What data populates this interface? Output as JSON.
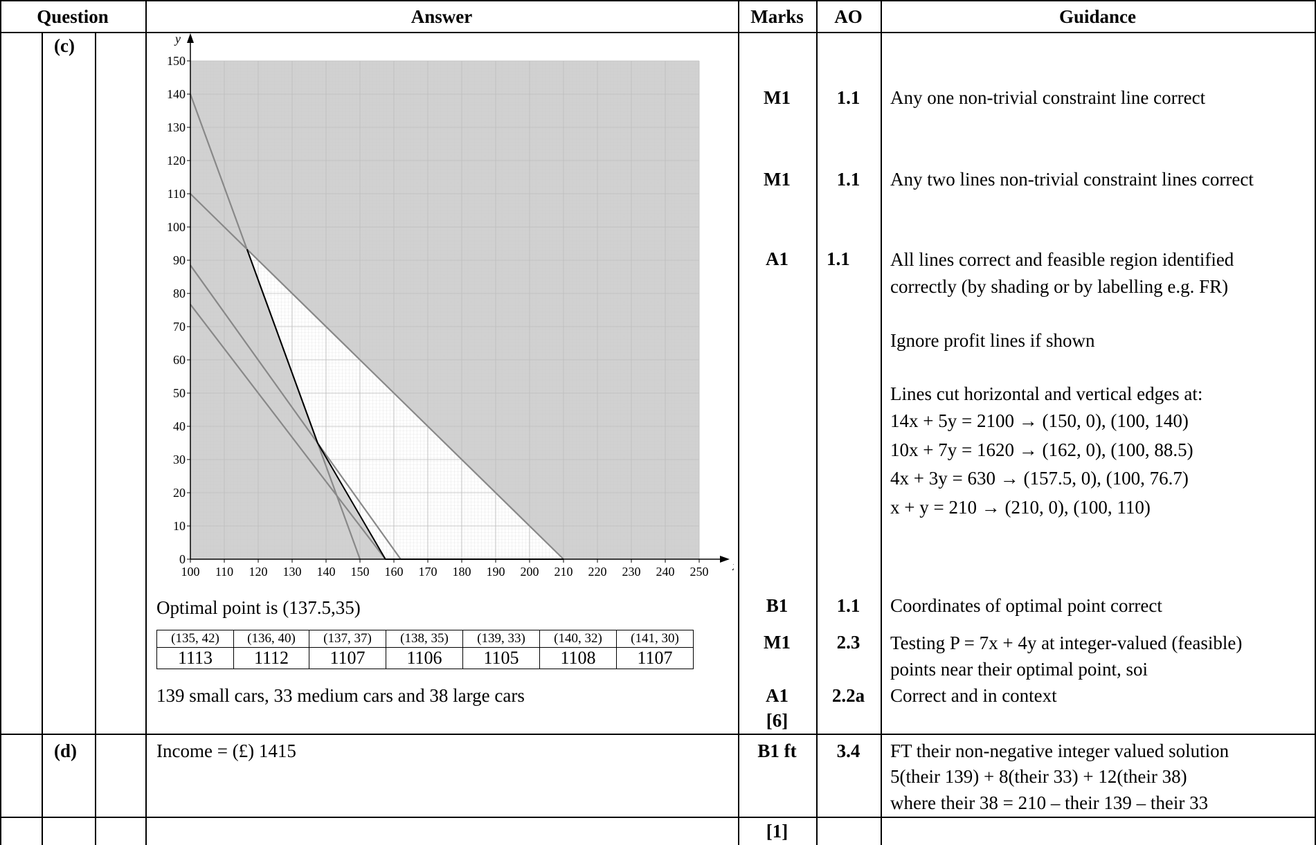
{
  "headers": {
    "question": "Question",
    "answer": "Answer",
    "marks": "Marks",
    "ao": "AO",
    "guidance": "Guidance"
  },
  "part_c": {
    "label": "(c)",
    "optimal_text": "Optimal point is (137.5,35)",
    "test_points": [
      "(135, 42)",
      "(136, 40)",
      "(137, 37)",
      "(138, 35)",
      "(139, 33)",
      "(140, 32)",
      "(141, 30)"
    ],
    "test_values": [
      "1113",
      "1112",
      "1107",
      "1106",
      "1105",
      "1108",
      "1107"
    ],
    "conclusion": "139 small cars, 33 medium cars and 38 large cars",
    "marks": [
      {
        "mark": "M1",
        "ao": "1.1",
        "guidance": "Any one non-trivial constraint line correct"
      },
      {
        "mark": "M1",
        "ao": "1.1",
        "guidance": "Any two lines non-trivial constraint lines correct"
      },
      {
        "mark": "A1",
        "ao": "1.1",
        "guidance": "All lines correct and feasible region identified correctly (by shading or by labelling e.g. FR)"
      },
      {
        "mark": "B1",
        "ao": "1.1",
        "guidance": "Coordinates of optimal point correct"
      },
      {
        "mark": "M1",
        "ao": "2.3",
        "guidance": "Testing P = 7x + 4y at integer-valued (feasible) points near their optimal point, soi"
      },
      {
        "mark": "A1",
        "ao": "2.2a",
        "guidance": "Correct and in context"
      }
    ],
    "total": "[6]",
    "guidance_extra": {
      "ignore": "Ignore profit lines if shown",
      "intro": "Lines cut horizontal and vertical edges at:",
      "lines": [
        "14x + 5y = 2100 → (150, 0), (100, 140)",
        "10x + 7y = 1620 → (162, 0), (100, 88.5)",
        "4x + 3y = 630 → (157.5, 0), (100, 76.7)",
        "x + y = 210 → (210, 0), (100, 110)"
      ]
    }
  },
  "part_d": {
    "label": "(d)",
    "answer": "Income = (£) 1415",
    "mark": "B1 ft",
    "ao": "3.4",
    "guidance": [
      "FT their non-negative integer valued solution",
      "5(their 139) + 8(their 33) + 12(their 38)",
      "where their 38 = 210 – their 139 – their 33"
    ],
    "total": "[1]"
  },
  "chart_data": {
    "type": "line",
    "xlabel": "x",
    "ylabel": "y",
    "xlim": [
      100,
      250
    ],
    "ylim": [
      0,
      150
    ],
    "x_ticks": [
      100,
      110,
      120,
      130,
      140,
      150,
      160,
      170,
      180,
      190,
      200,
      210,
      220,
      230,
      240,
      250
    ],
    "y_ticks": [
      0,
      10,
      20,
      30,
      40,
      50,
      60,
      70,
      80,
      90,
      100,
      110,
      120,
      130,
      140,
      150
    ],
    "grid": true,
    "series": [
      {
        "equation": "14x + 5y = 2100",
        "points": [
          [
            100,
            140
          ],
          [
            150,
            0
          ]
        ]
      },
      {
        "equation": "10x + 7y = 1620",
        "points": [
          [
            100,
            88.5
          ],
          [
            162,
            0
          ]
        ]
      },
      {
        "equation": "4x + 3y = 630",
        "points": [
          [
            100,
            76.7
          ],
          [
            157.5,
            0
          ]
        ]
      },
      {
        "equation": "x + y = 210",
        "points": [
          [
            100,
            110
          ],
          [
            210,
            0
          ]
        ]
      }
    ],
    "feasible_region": [
      [
        116.7,
        93.3
      ],
      [
        137.5,
        35
      ],
      [
        157.5,
        0
      ],
      [
        210,
        0
      ]
    ],
    "colors": {
      "shade": "#cfcfcf",
      "line": "#888888",
      "boundary": "#000000"
    }
  }
}
